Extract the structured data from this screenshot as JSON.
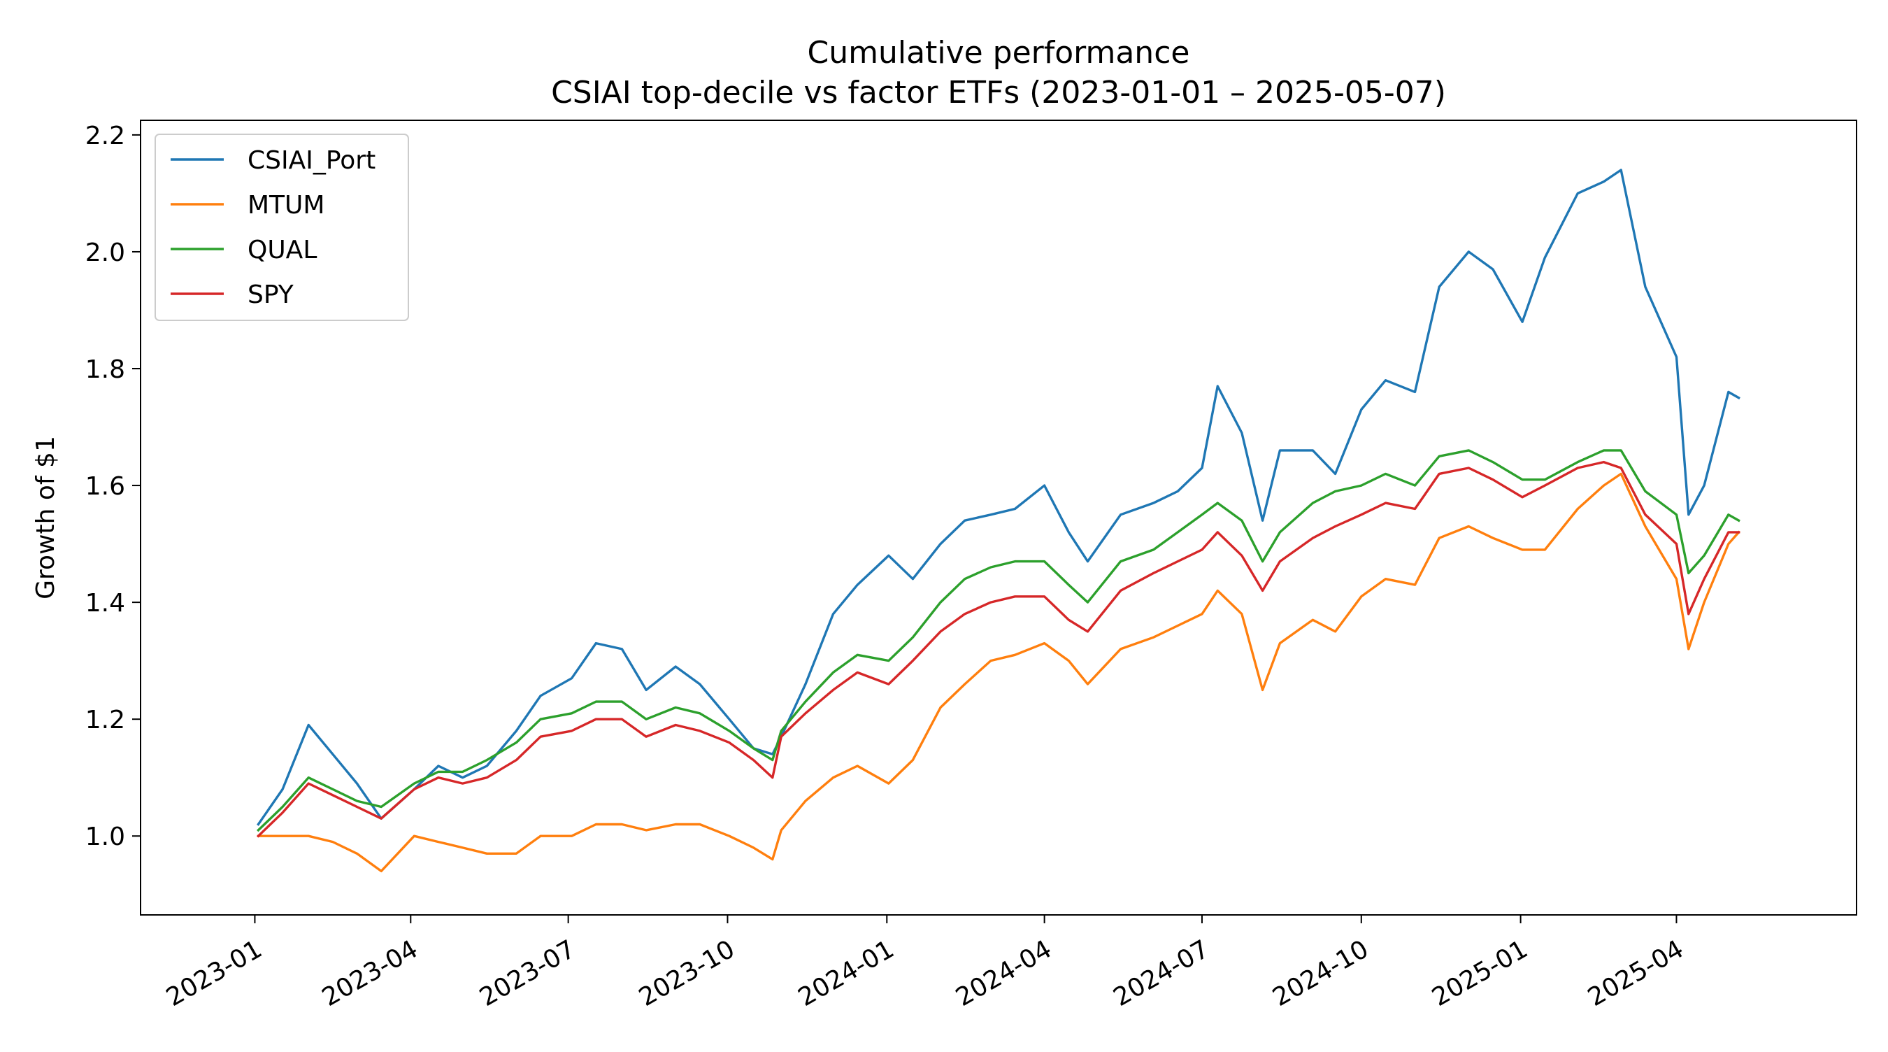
{
  "chart_data": {
    "type": "line",
    "title": "Cumulative performance",
    "subtitle": "CSIAI top-decile vs factor ETFs (2023-01-01 – 2025-05-07)",
    "xlabel": "",
    "ylabel": "Growth of $1",
    "x_ticks": [
      "2023-01",
      "2023-04",
      "2023-07",
      "2023-10",
      "2024-01",
      "2024-04",
      "2024-07",
      "2024-10",
      "2025-01",
      "2025-04"
    ],
    "y_ticks": [
      "1.0",
      "1.2",
      "1.4",
      "1.6",
      "1.8",
      "2.0",
      "2.2"
    ],
    "xlim": [
      "2022-10-27",
      "2025-07-14"
    ],
    "ylim": [
      0.865,
      2.225
    ],
    "grid": false,
    "legend_position": "upper left",
    "colors": {
      "CSIAI_Port": "#1f77b4",
      "MTUM": "#ff7f0e",
      "QUAL": "#2ca02c",
      "SPY": "#d62728"
    },
    "x": [
      "2023-01-03",
      "2023-01-17",
      "2023-02-01",
      "2023-02-15",
      "2023-03-01",
      "2023-03-15",
      "2023-04-03",
      "2023-04-17",
      "2023-05-01",
      "2023-05-15",
      "2023-06-01",
      "2023-06-15",
      "2023-07-03",
      "2023-07-17",
      "2023-08-01",
      "2023-08-15",
      "2023-09-01",
      "2023-09-15",
      "2023-10-02",
      "2023-10-16",
      "2023-10-27",
      "2023-11-01",
      "2023-11-15",
      "2023-12-01",
      "2023-12-15",
      "2024-01-02",
      "2024-01-16",
      "2024-02-01",
      "2024-02-15",
      "2024-03-01",
      "2024-03-15",
      "2024-04-01",
      "2024-04-15",
      "2024-04-26",
      "2024-05-15",
      "2024-06-03",
      "2024-06-17",
      "2024-07-01",
      "2024-07-10",
      "2024-07-24",
      "2024-08-05",
      "2024-08-15",
      "2024-09-03",
      "2024-09-16",
      "2024-10-01",
      "2024-10-15",
      "2024-11-01",
      "2024-11-15",
      "2024-12-02",
      "2024-12-16",
      "2025-01-02",
      "2025-01-15",
      "2025-02-03",
      "2025-02-18",
      "2025-02-28",
      "2025-03-14",
      "2025-04-01",
      "2025-04-08",
      "2025-04-17",
      "2025-05-01",
      "2025-05-07"
    ],
    "series": [
      {
        "name": "CSIAI_Port",
        "values": [
          1.02,
          1.08,
          1.19,
          1.14,
          1.09,
          1.03,
          1.08,
          1.12,
          1.1,
          1.12,
          1.18,
          1.24,
          1.27,
          1.33,
          1.32,
          1.25,
          1.29,
          1.26,
          1.2,
          1.15,
          1.14,
          1.17,
          1.26,
          1.38,
          1.43,
          1.48,
          1.44,
          1.5,
          1.54,
          1.55,
          1.56,
          1.6,
          1.52,
          1.47,
          1.55,
          1.57,
          1.59,
          1.63,
          1.77,
          1.69,
          1.54,
          1.66,
          1.66,
          1.62,
          1.73,
          1.78,
          1.76,
          1.94,
          2.0,
          1.97,
          1.88,
          1.99,
          2.1,
          2.12,
          2.14,
          1.94,
          1.82,
          1.55,
          1.6,
          1.76,
          1.75
        ]
      },
      {
        "name": "MTUM",
        "values": [
          1.0,
          1.0,
          1.0,
          0.99,
          0.97,
          0.94,
          1.0,
          0.99,
          0.98,
          0.97,
          0.97,
          1.0,
          1.0,
          1.02,
          1.02,
          1.01,
          1.02,
          1.02,
          1.0,
          0.98,
          0.96,
          1.01,
          1.06,
          1.1,
          1.12,
          1.09,
          1.13,
          1.22,
          1.26,
          1.3,
          1.31,
          1.33,
          1.3,
          1.26,
          1.32,
          1.34,
          1.36,
          1.38,
          1.42,
          1.38,
          1.25,
          1.33,
          1.37,
          1.35,
          1.41,
          1.44,
          1.43,
          1.51,
          1.53,
          1.51,
          1.49,
          1.49,
          1.56,
          1.6,
          1.62,
          1.53,
          1.44,
          1.32,
          1.4,
          1.5,
          1.52
        ]
      },
      {
        "name": "QUAL",
        "values": [
          1.01,
          1.05,
          1.1,
          1.08,
          1.06,
          1.05,
          1.09,
          1.11,
          1.11,
          1.13,
          1.16,
          1.2,
          1.21,
          1.23,
          1.23,
          1.2,
          1.22,
          1.21,
          1.18,
          1.15,
          1.13,
          1.18,
          1.23,
          1.28,
          1.31,
          1.3,
          1.34,
          1.4,
          1.44,
          1.46,
          1.47,
          1.47,
          1.43,
          1.4,
          1.47,
          1.49,
          1.52,
          1.55,
          1.57,
          1.54,
          1.47,
          1.52,
          1.57,
          1.59,
          1.6,
          1.62,
          1.6,
          1.65,
          1.66,
          1.64,
          1.61,
          1.61,
          1.64,
          1.66,
          1.66,
          1.59,
          1.55,
          1.45,
          1.48,
          1.55,
          1.54
        ]
      },
      {
        "name": "SPY",
        "values": [
          1.0,
          1.04,
          1.09,
          1.07,
          1.05,
          1.03,
          1.08,
          1.1,
          1.09,
          1.1,
          1.13,
          1.17,
          1.18,
          1.2,
          1.2,
          1.17,
          1.19,
          1.18,
          1.16,
          1.13,
          1.1,
          1.17,
          1.21,
          1.25,
          1.28,
          1.26,
          1.3,
          1.35,
          1.38,
          1.4,
          1.41,
          1.41,
          1.37,
          1.35,
          1.42,
          1.45,
          1.47,
          1.49,
          1.52,
          1.48,
          1.42,
          1.47,
          1.51,
          1.53,
          1.55,
          1.57,
          1.56,
          1.62,
          1.63,
          1.61,
          1.58,
          1.6,
          1.63,
          1.64,
          1.63,
          1.55,
          1.5,
          1.38,
          1.44,
          1.52,
          1.52
        ]
      }
    ]
  }
}
